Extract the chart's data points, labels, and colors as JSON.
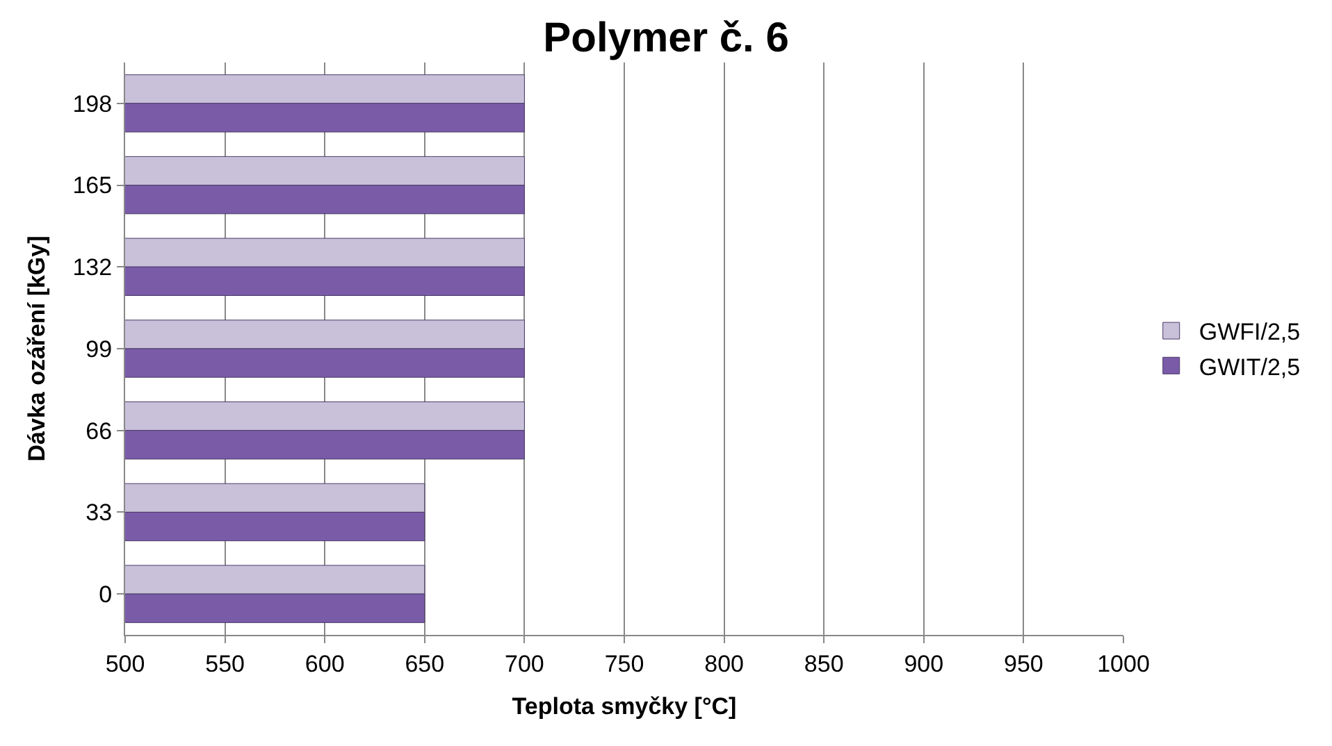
{
  "chart_data": {
    "type": "bar",
    "orientation": "horizontal",
    "title": "Polymer č. 6",
    "xlabel": "Teplota smyčky [°C]",
    "ylabel": "Dávka ozáření [kGy]",
    "categories": [
      "198",
      "165",
      "132",
      "99",
      "66",
      "33",
      "0"
    ],
    "series": [
      {
        "name": "GWFI/2,5",
        "color": "#c9c0da",
        "values": [
          700,
          700,
          700,
          700,
          700,
          650,
          650
        ]
      },
      {
        "name": "GWIT/2,5",
        "color": "#7a5ba8",
        "values": [
          700,
          700,
          700,
          700,
          700,
          650,
          650
        ]
      }
    ],
    "xlim": [
      500,
      1000
    ],
    "xticks": [
      500,
      550,
      600,
      650,
      700,
      750,
      800,
      850,
      900,
      950,
      1000
    ],
    "grid": "x",
    "legend": "right"
  }
}
